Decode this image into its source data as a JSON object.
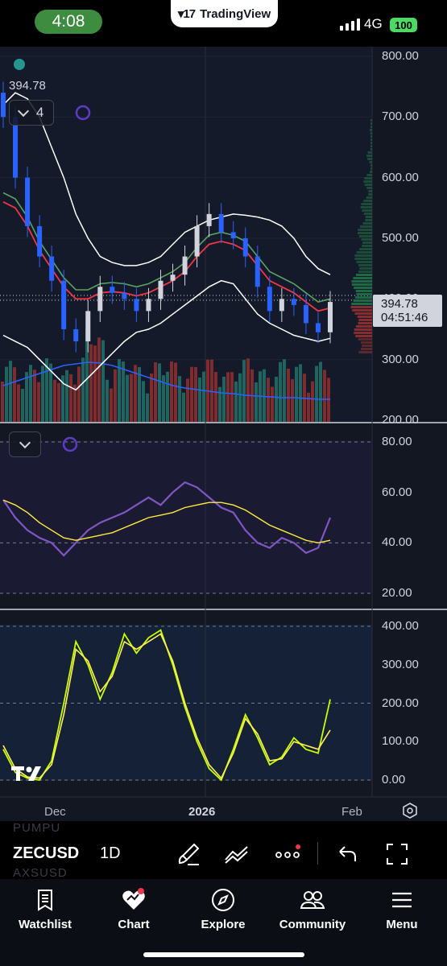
{
  "status_bar": {
    "time": "4:08",
    "app_name": "TradingView",
    "network": "4G",
    "battery": "100"
  },
  "legend": {
    "last_price": "394.78",
    "indicator_count": "4"
  },
  "price_tag": {
    "price": "394.78",
    "countdown": "04:51:46"
  },
  "price_axis": [
    "800.00",
    "700.00",
    "600.00",
    "500.00",
    "400.00",
    "300.00",
    "200.00"
  ],
  "rsi_axis": [
    "80.00",
    "60.00",
    "40.00",
    "20.00"
  ],
  "osc_axis": [
    "400.00",
    "300.00",
    "200.00",
    "100.00",
    "0.00"
  ],
  "time_axis": [
    {
      "label": "Dec",
      "bold": false
    },
    {
      "label": "2026",
      "bold": true
    },
    {
      "label": "Feb",
      "bold": false
    }
  ],
  "toolbar": {
    "ghost_symbol_top": "PUMPU",
    "symbol": "ZECUSD",
    "ghost_symbol_bottom": "AXSUSD",
    "interval": "1D",
    "icons": [
      "brush-icon",
      "trend-lines-icon",
      "more-dots-icon",
      "undo-icon",
      "fullscreen-icon"
    ]
  },
  "tabs": [
    {
      "label": "Watchlist",
      "icon": "bookmark-list-icon"
    },
    {
      "label": "Chart",
      "icon": "chart-heart-icon"
    },
    {
      "label": "Explore",
      "icon": "compass-icon"
    },
    {
      "label": "Community",
      "icon": "people-icon"
    },
    {
      "label": "Menu",
      "icon": "hamburger-icon"
    }
  ],
  "colors": {
    "background": "#131722",
    "up": "#26a69a",
    "down": "#ef5350",
    "candle_up": "#d1d4dc",
    "candle_down": "#2962ff",
    "bollinger": "#ffffff",
    "ema_fast": "#f23645",
    "ema_slow": "#66bb6a",
    "rsi": "#7e57c2",
    "rsi_ma": "#ffeb3b",
    "osc_fast": "#c6ff00",
    "osc_slow": "#ffee58",
    "volume_ma": "#2962ff"
  },
  "chart_data": [
    {
      "type": "candlestick",
      "series": "ZECUSD 1D",
      "ylim": [
        200,
        800
      ],
      "last_price": 394.78,
      "bollinger_upper": [
        720,
        740,
        730,
        700,
        650,
        600,
        540,
        500,
        470,
        460,
        455,
        455,
        460,
        470,
        490,
        510,
        520,
        530,
        535,
        540,
        538,
        535,
        530,
        520,
        500,
        470,
        450,
        440
      ],
      "bollinger_lower": [
        340,
        330,
        320,
        300,
        280,
        260,
        250,
        270,
        290,
        310,
        330,
        345,
        350,
        360,
        375,
        390,
        405,
        420,
        430,
        425,
        400,
        375,
        360,
        350,
        340,
        335,
        330,
        335
      ],
      "close": [
        700,
        600,
        520,
        470,
        430,
        350,
        330,
        380,
        420,
        410,
        400,
        380,
        400,
        430,
        440,
        470,
        520,
        540,
        510,
        500,
        470,
        420,
        380,
        400,
        390,
        360,
        345,
        395
      ],
      "ema_fast": [
        560,
        550,
        520,
        480,
        450,
        420,
        400,
        400,
        410,
        412,
        410,
        405,
        410,
        420,
        430,
        445,
        470,
        490,
        495,
        490,
        480,
        455,
        430,
        420,
        410,
        395,
        380,
        385
      ],
      "volume_ma": [
        0.45,
        0.5,
        0.55,
        0.6,
        0.65,
        0.7,
        0.72,
        0.74,
        0.73,
        0.7,
        0.65,
        0.6,
        0.55,
        0.5,
        0.45,
        0.42,
        0.4,
        0.38,
        0.36,
        0.35,
        0.33,
        0.32,
        0.31,
        0.3,
        0.3,
        0.29,
        0.28,
        0.28
      ]
    },
    {
      "type": "line",
      "series": "RSI",
      "ylim": [
        15,
        85
      ],
      "rsi": [
        57,
        50,
        45,
        42,
        40,
        35,
        40,
        45,
        48,
        50,
        52,
        55,
        58,
        55,
        60,
        64,
        62,
        58,
        54,
        52,
        45,
        40,
        38,
        42,
        40,
        36,
        38,
        50
      ],
      "rsi_ma": [
        57,
        55,
        52,
        48,
        45,
        42,
        41,
        42,
        43,
        44,
        46,
        48,
        50,
        51,
        52,
        54,
        55,
        56,
        56,
        55,
        53,
        50,
        47,
        45,
        43,
        41,
        40,
        41
      ]
    },
    {
      "type": "line",
      "series": "Oscillator",
      "ylim": [
        -20,
        420
      ],
      "fast": [
        80,
        20,
        5,
        0,
        50,
        200,
        360,
        300,
        210,
        280,
        380,
        330,
        370,
        390,
        300,
        190,
        100,
        30,
        0,
        80,
        170,
        110,
        40,
        60,
        110,
        80,
        70,
        210
      ],
      "slow": [
        90,
        30,
        8,
        5,
        40,
        170,
        340,
        310,
        230,
        270,
        360,
        340,
        360,
        380,
        310,
        200,
        110,
        40,
        5,
        70,
        160,
        120,
        50,
        55,
        100,
        90,
        80,
        130
      ]
    }
  ]
}
